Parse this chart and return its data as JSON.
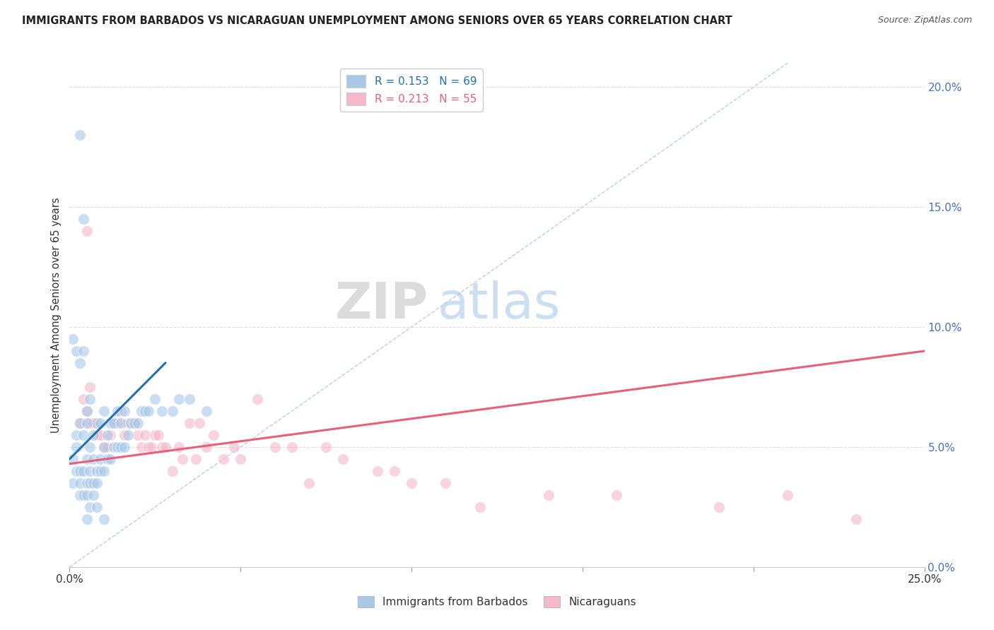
{
  "title": "IMMIGRANTS FROM BARBADOS VS NICARAGUAN UNEMPLOYMENT AMONG SENIORS OVER 65 YEARS CORRELATION CHART",
  "source": "Source: ZipAtlas.com",
  "ylabel": "Unemployment Among Seniors over 65 years",
  "xlabel_blue": "Immigrants from Barbados",
  "xlabel_pink": "Nicaraguans",
  "xlim": [
    0.0,
    0.25
  ],
  "ylim": [
    0.0,
    0.21
  ],
  "right_yticks": [
    0.0,
    0.05,
    0.1,
    0.15,
    0.2
  ],
  "right_yticklabels": [
    "0.0%",
    "5.0%",
    "10.0%",
    "15.0%",
    "20.0%"
  ],
  "xticks": [
    0.0,
    0.05,
    0.1,
    0.15,
    0.2,
    0.25
  ],
  "xticklabels": [
    "0.0%",
    "",
    "",
    "",
    "",
    "25.0%"
  ],
  "legend_r_blue": "R = 0.153",
  "legend_n_blue": "N = 69",
  "legend_r_pink": "R = 0.213",
  "legend_n_pink": "N = 55",
  "blue_color": "#a8c8e8",
  "pink_color": "#f4b8c8",
  "blue_line_color": "#2171b5",
  "pink_line_color": "#e8607a",
  "watermark_zip": "ZIP",
  "watermark_atlas": "atlas",
  "background_color": "#ffffff",
  "blue_scatter_x": [
    0.001,
    0.001,
    0.002,
    0.002,
    0.002,
    0.003,
    0.003,
    0.003,
    0.003,
    0.004,
    0.004,
    0.004,
    0.005,
    0.005,
    0.005,
    0.005,
    0.006,
    0.006,
    0.006,
    0.006,
    0.007,
    0.007,
    0.007,
    0.008,
    0.008,
    0.008,
    0.009,
    0.009,
    0.009,
    0.01,
    0.01,
    0.01,
    0.011,
    0.011,
    0.012,
    0.012,
    0.013,
    0.013,
    0.014,
    0.014,
    0.015,
    0.015,
    0.016,
    0.016,
    0.017,
    0.018,
    0.019,
    0.02,
    0.021,
    0.022,
    0.023,
    0.025,
    0.027,
    0.03,
    0.032,
    0.035,
    0.04,
    0.001,
    0.002,
    0.003,
    0.003,
    0.004,
    0.004,
    0.005,
    0.005,
    0.006,
    0.007,
    0.008,
    0.01
  ],
  "blue_scatter_y": [
    0.035,
    0.045,
    0.04,
    0.05,
    0.055,
    0.03,
    0.035,
    0.04,
    0.06,
    0.03,
    0.04,
    0.055,
    0.03,
    0.035,
    0.045,
    0.065,
    0.035,
    0.04,
    0.05,
    0.07,
    0.035,
    0.045,
    0.055,
    0.035,
    0.04,
    0.06,
    0.04,
    0.045,
    0.06,
    0.04,
    0.05,
    0.065,
    0.045,
    0.055,
    0.045,
    0.06,
    0.05,
    0.06,
    0.05,
    0.065,
    0.05,
    0.06,
    0.05,
    0.065,
    0.055,
    0.06,
    0.06,
    0.06,
    0.065,
    0.065,
    0.065,
    0.07,
    0.065,
    0.065,
    0.07,
    0.07,
    0.065,
    0.095,
    0.09,
    0.085,
    0.18,
    0.145,
    0.09,
    0.06,
    0.02,
    0.025,
    0.03,
    0.025,
    0.02
  ],
  "pink_scatter_x": [
    0.003,
    0.004,
    0.005,
    0.006,
    0.006,
    0.007,
    0.008,
    0.009,
    0.01,
    0.011,
    0.012,
    0.013,
    0.014,
    0.015,
    0.016,
    0.017,
    0.018,
    0.019,
    0.02,
    0.021,
    0.022,
    0.023,
    0.024,
    0.025,
    0.026,
    0.027,
    0.028,
    0.03,
    0.032,
    0.033,
    0.035,
    0.037,
    0.038,
    0.04,
    0.042,
    0.045,
    0.048,
    0.05,
    0.055,
    0.06,
    0.065,
    0.07,
    0.075,
    0.08,
    0.09,
    0.095,
    0.1,
    0.11,
    0.12,
    0.14,
    0.16,
    0.19,
    0.21,
    0.23,
    0.005
  ],
  "pink_scatter_y": [
    0.06,
    0.07,
    0.065,
    0.06,
    0.075,
    0.06,
    0.055,
    0.055,
    0.05,
    0.05,
    0.055,
    0.06,
    0.06,
    0.065,
    0.055,
    0.06,
    0.06,
    0.06,
    0.055,
    0.05,
    0.055,
    0.05,
    0.05,
    0.055,
    0.055,
    0.05,
    0.05,
    0.04,
    0.05,
    0.045,
    0.06,
    0.045,
    0.06,
    0.05,
    0.055,
    0.045,
    0.05,
    0.045,
    0.07,
    0.05,
    0.05,
    0.035,
    0.05,
    0.045,
    0.04,
    0.04,
    0.035,
    0.035,
    0.025,
    0.03,
    0.03,
    0.025,
    0.03,
    0.02,
    0.14
  ],
  "blue_trend_x": [
    0.0,
    0.028
  ],
  "blue_trend_y": [
    0.045,
    0.085
  ],
  "pink_trend_x": [
    0.0,
    0.25
  ],
  "pink_trend_y": [
    0.043,
    0.09
  ],
  "ref_line_x": [
    0.0,
    0.21
  ],
  "ref_line_y": [
    0.0,
    0.21
  ],
  "grid_color": "#dddddd",
  "tick_color": "#4472c4"
}
